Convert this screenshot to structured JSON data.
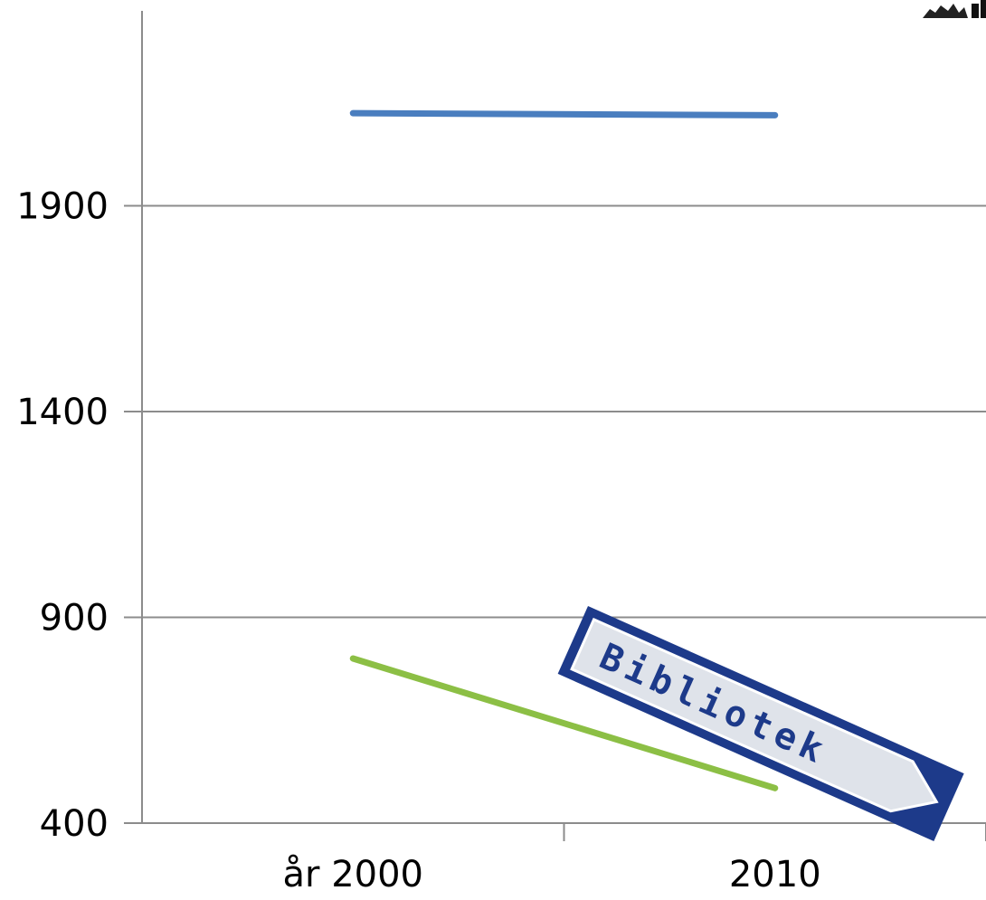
{
  "chart_data": {
    "type": "line",
    "categories": [
      "år 2000",
      "2010"
    ],
    "series": [
      {
        "values": [
          2125,
          2120
        ],
        "color": "#4a7ebf"
      },
      {
        "values": [
          800,
          485
        ],
        "color": "#8cbf45"
      }
    ],
    "ylim": [
      400,
      2400
    ],
    "yticks": [
      400,
      900,
      1400,
      1900
    ],
    "grid": true,
    "title": "",
    "xlabel": "",
    "ylabel": ""
  },
  "sign": {
    "text": "Bibliotek",
    "border_color": "#1d3a8a",
    "fill_color": "#dfe3ea"
  },
  "corner_logo": {
    "icon": "skyline-logo-icon"
  }
}
